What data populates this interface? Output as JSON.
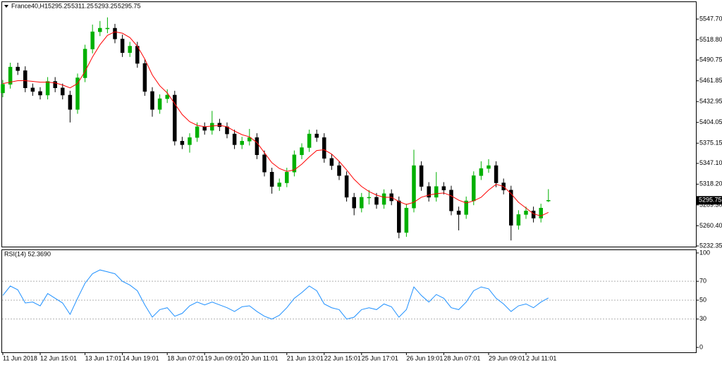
{
  "chart_data": {
    "type": "candlestick",
    "symbol": "France40,H1",
    "categories": [
      "11 Jun 2018",
      null,
      null,
      null,
      null,
      "12 Jun 15:01",
      null,
      null,
      null,
      null,
      null,
      "13 Jun 17:01",
      null,
      null,
      null,
      null,
      "14 Jun 19:01",
      null,
      null,
      null,
      null,
      null,
      "18 Jun 07:01",
      null,
      null,
      null,
      null,
      "19 Jun 09:01",
      null,
      null,
      null,
      null,
      "20 Jun 11:01",
      null,
      null,
      null,
      null,
      null,
      "21 Jun 13:01",
      null,
      null,
      null,
      null,
      "22 Jun 15:01",
      null,
      null,
      null,
      null,
      "25 Jun 17:01",
      null,
      null,
      null,
      null,
      null,
      "26 Jun 19:01",
      null,
      null,
      null,
      null,
      "28 Jun 07:01",
      null,
      null,
      null,
      null,
      null,
      "29 Jun 09:01",
      null,
      null,
      null,
      null,
      "2 Jul 11:01",
      null,
      null,
      null
    ],
    "open": [
      5445,
      5457,
      5481,
      5476,
      5452,
      5447,
      5442,
      5461,
      5452,
      5442,
      5422,
      5466,
      5506,
      5530,
      5535,
      5535,
      5520,
      5501,
      5510,
      5486,
      5447,
      5422,
      5437,
      5442,
      5378,
      5373,
      5383,
      5398,
      5393,
      5403,
      5398,
      5388,
      5373,
      5378,
      5383,
      5359,
      5335,
      5315,
      5320,
      5335,
      5359,
      5369,
      5388,
      5383,
      5354,
      5344,
      5330,
      5300,
      5285,
      5300,
      5300,
      5290,
      5305,
      5295,
      5251,
      5285,
      5344,
      5315,
      5300,
      5315,
      5310,
      5281,
      5276,
      5295,
      5330,
      5340,
      5344,
      5320,
      5310,
      5261,
      5276,
      5281,
      5271,
      5295.25
    ],
    "high": [
      5463,
      5487,
      5487,
      5482,
      5458,
      5453,
      5467,
      5467,
      5458,
      5448,
      5472,
      5512,
      5540,
      5545,
      5550,
      5541,
      5526,
      5516,
      5516,
      5492,
      5453,
      5443,
      5450,
      5448,
      5384,
      5389,
      5404,
      5404,
      5420,
      5409,
      5404,
      5394,
      5384,
      5395,
      5389,
      5365,
      5341,
      5326,
      5341,
      5365,
      5375,
      5394,
      5394,
      5389,
      5360,
      5350,
      5336,
      5306,
      5306,
      5310,
      5306,
      5311,
      5311,
      5301,
      5291,
      5366,
      5350,
      5321,
      5335,
      5321,
      5316,
      5287,
      5301,
      5336,
      5350,
      5353,
      5350,
      5326,
      5316,
      5282,
      5287,
      5287,
      5291,
      5311.25
    ],
    "low": [
      5439,
      5451,
      5470,
      5446,
      5441,
      5436,
      5436,
      5446,
      5436,
      5404,
      5416,
      5460,
      5500,
      5524,
      5528,
      5514,
      5495,
      5495,
      5480,
      5441,
      5412,
      5416,
      5431,
      5372,
      5367,
      5362,
      5377,
      5387,
      5387,
      5392,
      5382,
      5367,
      5367,
      5372,
      5353,
      5329,
      5305,
      5309,
      5314,
      5329,
      5353,
      5363,
      5377,
      5348,
      5338,
      5324,
      5294,
      5275,
      5279,
      5290,
      5284,
      5284,
      5289,
      5243,
      5245,
      5279,
      5309,
      5294,
      5294,
      5304,
      5275,
      5254,
      5270,
      5289,
      5324,
      5334,
      5314,
      5304,
      5240,
      5255,
      5270,
      5265,
      5265,
      5293.25
    ],
    "close": [
      5457,
      5481,
      5476,
      5452,
      5447,
      5442,
      5461,
      5452,
      5442,
      5422,
      5466,
      5506,
      5530,
      5535,
      5535,
      5520,
      5501,
      5510,
      5486,
      5447,
      5422,
      5437,
      5442,
      5378,
      5373,
      5383,
      5398,
      5393,
      5403,
      5398,
      5388,
      5373,
      5378,
      5383,
      5359,
      5335,
      5315,
      5320,
      5335,
      5359,
      5369,
      5388,
      5383,
      5354,
      5344,
      5330,
      5300,
      5285,
      5300,
      5300,
      5290,
      5305,
      5295,
      5251,
      5285,
      5344,
      5315,
      5300,
      5315,
      5310,
      5281,
      5276,
      5295,
      5330,
      5340,
      5344,
      5320,
      5310,
      5261,
      5276,
      5281,
      5271,
      5285,
      5295.75
    ],
    "ma_values": [
      5458,
      5460,
      5462,
      5462,
      5461,
      5460,
      5460,
      5459,
      5456,
      5452,
      5458,
      5475,
      5495,
      5512,
      5525,
      5530,
      5528,
      5522,
      5510,
      5492,
      5470,
      5455,
      5445,
      5430,
      5415,
      5405,
      5400,
      5398,
      5399,
      5400,
      5398,
      5392,
      5387,
      5384,
      5376,
      5362,
      5348,
      5340,
      5336,
      5338,
      5346,
      5356,
      5365,
      5366,
      5360,
      5350,
      5338,
      5325,
      5315,
      5308,
      5303,
      5300,
      5300,
      5294,
      5290,
      5293,
      5300,
      5303,
      5305,
      5306,
      5302,
      5296,
      5292,
      5295,
      5300,
      5310,
      5318,
      5315,
      5305,
      5293,
      5285,
      5277,
      5274,
      5279
    ],
    "bull_color": "#00b000",
    "bear_color": "#000000",
    "ma_color": "#ff0000",
    "ylim": [
      5231.4,
      5572.2
    ],
    "yticks": [
      {
        "value": 5547.7,
        "label": "5547.70"
      },
      {
        "value": 5518.8,
        "label": "5518.80"
      },
      {
        "value": 5490.75,
        "label": "5490.75"
      },
      {
        "value": 5461.85,
        "label": "5461.85"
      },
      {
        "value": 5432.95,
        "label": "5432.95"
      },
      {
        "value": 5404.05,
        "label": "5404.05"
      },
      {
        "value": 5375.15,
        "label": "5375.15"
      },
      {
        "value": 5347.1,
        "label": "5347.10"
      },
      {
        "value": 5318.2,
        "label": "5318.20"
      },
      {
        "value": 5289.3,
        "label": "5289.30"
      },
      {
        "value": 5260.4,
        "label": "5260.40"
      },
      {
        "value": 5232.35,
        "label": "5232.35"
      }
    ],
    "rsi": {
      "title": "RSI(14) 52.3690",
      "color": "#1e90ff",
      "values": [
        55,
        65,
        61,
        47,
        48,
        44,
        57,
        52,
        47,
        35,
        52,
        68,
        78,
        82,
        80,
        78,
        70,
        66,
        60,
        45,
        32,
        40,
        42,
        33,
        36,
        44,
        48,
        45,
        48,
        45,
        42,
        38,
        43,
        44,
        38,
        33,
        30,
        34,
        42,
        52,
        58,
        65,
        60,
        46,
        42,
        40,
        30,
        32,
        40,
        42,
        40,
        46,
        43,
        32,
        40,
        64,
        55,
        48,
        56,
        52,
        42,
        40,
        48,
        60,
        64,
        62,
        52,
        46,
        38,
        44,
        46,
        42,
        48,
        52.369
      ],
      "ylim": [
        -5.2,
        103.7
      ],
      "yticks": [
        100,
        70,
        50,
        30,
        0
      ],
      "levels": [
        70,
        50,
        30
      ]
    }
  }
}
